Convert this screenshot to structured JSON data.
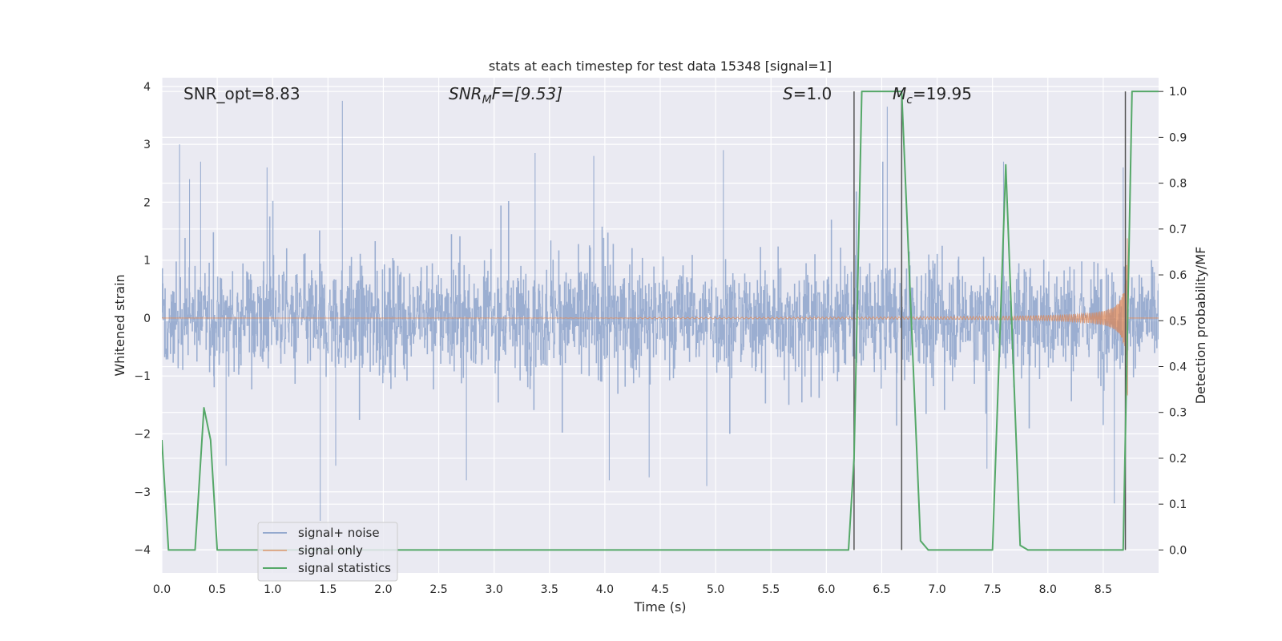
{
  "chart_data": {
    "type": "line",
    "title": "stats at each timestep for test data 15348 [signal=1]",
    "xlabel": "Time (s)",
    "ylabel": "Whitened strain",
    "ylabel_right": "Detection probability/MF",
    "xlim": [
      0,
      9
    ],
    "ylim": [
      -4.4,
      4.15
    ],
    "ylim_right": [
      -0.05,
      1.03
    ],
    "x_ticks": [
      "0.0",
      "0.5",
      "1.0",
      "1.5",
      "2.0",
      "2.5",
      "3.0",
      "3.5",
      "4.0",
      "4.5",
      "5.0",
      "5.5",
      "6.0",
      "6.5",
      "7.0",
      "7.5",
      "8.0",
      "8.5"
    ],
    "y_ticks": [
      "4",
      "3",
      "2",
      "1",
      "0",
      "-1",
      "-2",
      "-3",
      "-4"
    ],
    "y_ticks_right": [
      "1.0",
      "0.9",
      "0.8",
      "0.7",
      "0.6",
      "0.5",
      "0.4",
      "0.3",
      "0.2",
      "0.1",
      "0.0"
    ],
    "annotations": {
      "snr_opt": "SNR_opt=8.83",
      "snr_mf_base": "SNR",
      "snr_mf_sub": "M",
      "snr_mf_rest": "F=[9.53]",
      "s_base": "S",
      "s_rest": "=1.0",
      "mc_base": "M",
      "mc_sub": "c",
      "mc_rest": "=19.95"
    },
    "legend": {
      "placement": "lower-left",
      "entries": [
        {
          "label": "signal+ noise",
          "color": "#4c72b0"
        },
        {
          "label": "signal only",
          "color": "#dd8452"
        },
        {
          "label": "signal statistics",
          "color": "#55a868"
        }
      ]
    },
    "vlines_x": [
      6.25,
      6.68,
      8.7
    ],
    "noise_spikes": [
      {
        "x": 0.16,
        "y": 3.0
      },
      {
        "x": 0.25,
        "y": 2.4
      },
      {
        "x": 0.35,
        "y": 2.7
      },
      {
        "x": 1.63,
        "y": 3.75
      },
      {
        "x": 1.43,
        "y": -3.5
      },
      {
        "x": 0.95,
        "y": 2.6
      },
      {
        "x": 3.37,
        "y": 2.85
      },
      {
        "x": 3.9,
        "y": 2.8
      },
      {
        "x": 5.07,
        "y": 2.9
      },
      {
        "x": 6.55,
        "y": 3.65
      },
      {
        "x": 7.6,
        "y": 2.7
      },
      {
        "x": 8.68,
        "y": 2.6
      },
      {
        "x": 2.75,
        "y": -2.8
      },
      {
        "x": 4.04,
        "y": -2.8
      },
      {
        "x": 4.4,
        "y": -2.75
      },
      {
        "x": 4.92,
        "y": -2.9
      },
      {
        "x": 8.6,
        "y": -3.2
      },
      {
        "x": 1.57,
        "y": -2.55
      },
      {
        "x": 0.58,
        "y": -2.55
      },
      {
        "x": 7.45,
        "y": -2.6
      }
    ],
    "series": [
      {
        "name": "signal statistics",
        "axis": "right",
        "x": [
          0.0,
          0.06,
          0.12,
          0.3,
          0.38,
          0.44,
          0.5,
          6.2,
          6.25,
          6.32,
          6.68,
          6.75,
          6.85,
          6.92,
          7.0,
          7.5,
          7.62,
          7.75,
          7.82,
          8.62,
          8.68,
          8.76,
          9.0
        ],
        "y": [
          0.24,
          0.0,
          0.0,
          0.0,
          0.31,
          0.24,
          0.0,
          0.0,
          0.2,
          1.0,
          1.0,
          0.6,
          0.02,
          0.0,
          0.0,
          0.0,
          0.84,
          0.01,
          0.0,
          0.0,
          0.0,
          1.0,
          1.0
        ]
      }
    ]
  }
}
